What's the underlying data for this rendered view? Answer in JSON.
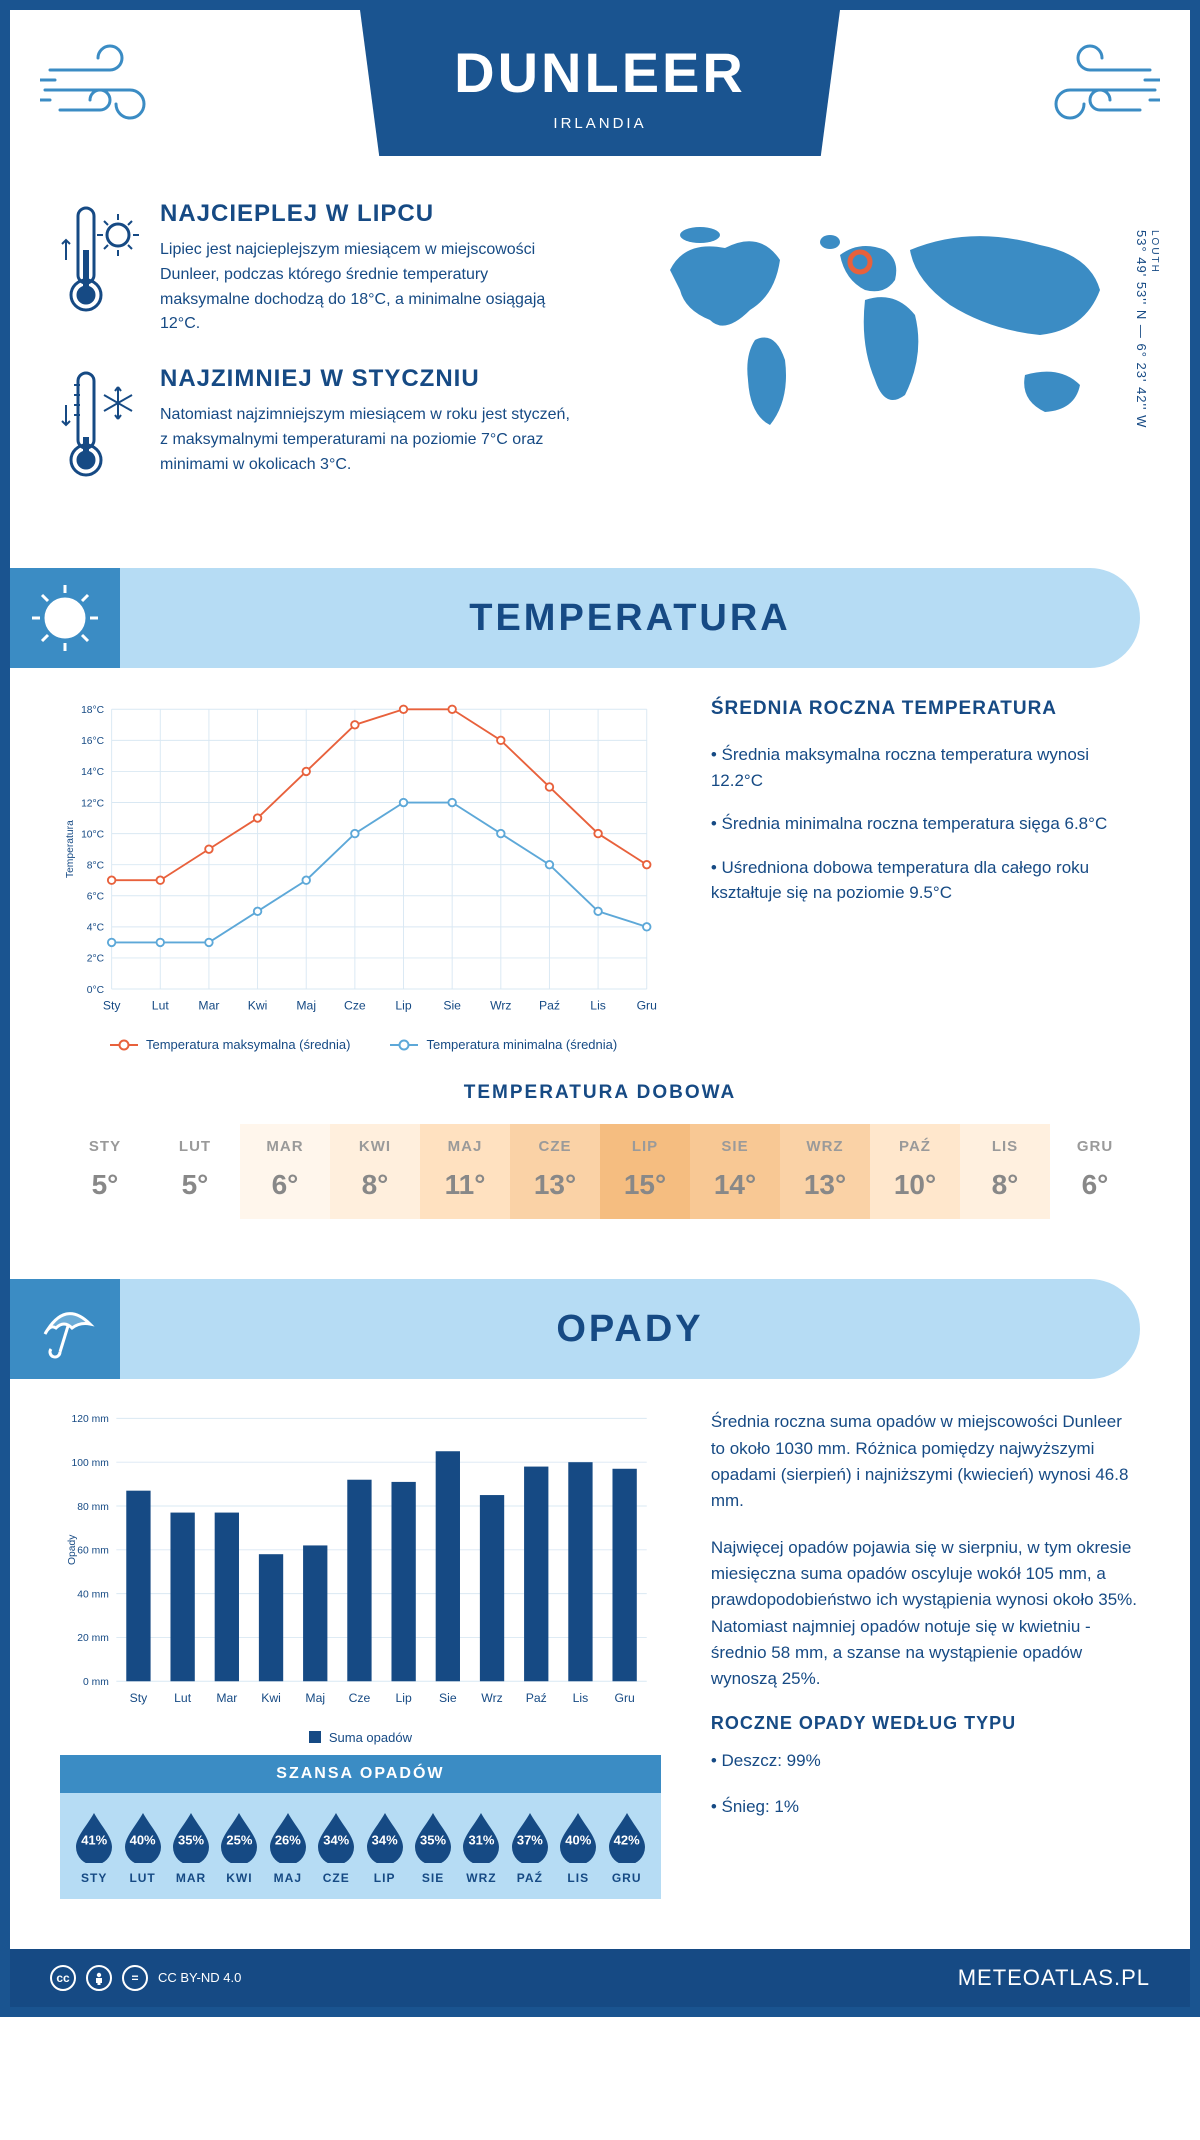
{
  "header": {
    "title": "DUNLEER",
    "subtitle": "IRLANDIA"
  },
  "coords": {
    "region": "LOUTH",
    "lat_lon": "53° 49' 53'' N — 6° 23' 42'' W"
  },
  "intro": {
    "hot": {
      "title": "NAJCIEPLEJ W LIPCU",
      "body": "Lipiec jest najcieplejszym miesiącem w miejscowości Dunleer, podczas którego średnie temperatury maksymalne dochodzą do 18°C, a minimalne osiągają 12°C."
    },
    "cold": {
      "title": "NAJZIMNIEJ W STYCZNIU",
      "body": "Natomiast najzimniejszym miesiącem w roku jest styczeń, z maksymalnymi temperaturami na poziomie 7°C oraz minimami w okolicach 3°C."
    }
  },
  "colors": {
    "primary": "#164a84",
    "accent": "#3b8cc4",
    "light": "#b6dcf4",
    "max_line": "#e8613c",
    "min_line": "#5da8d8",
    "grid": "#d9e8f3",
    "bar": "#164a84"
  },
  "temp_section": {
    "title": "TEMPERATURA",
    "info_title": "ŚREDNIA ROCZNA TEMPERATURA",
    "bullets": [
      "• Średnia maksymalna roczna temperatura wynosi 12.2°C",
      "• Średnia minimalna roczna temperatura sięga 6.8°C",
      "• Uśredniona dobowa temperatura dla całego roku kształtuje się na poziomie 9.5°C"
    ],
    "chart": {
      "type": "line",
      "months": [
        "Sty",
        "Lut",
        "Mar",
        "Kwi",
        "Maj",
        "Cze",
        "Lip",
        "Sie",
        "Wrz",
        "Paź",
        "Lis",
        "Gru"
      ],
      "max": [
        7,
        7,
        9,
        11,
        14,
        17,
        18,
        18,
        16,
        13,
        10,
        8
      ],
      "min": [
        3,
        3,
        3,
        5,
        7,
        10,
        12,
        12,
        10,
        8,
        5,
        4
      ],
      "y_min": 0,
      "y_max": 18,
      "y_step": 2,
      "y_label": "Temperatura",
      "y_tick_suffix": "°C",
      "legend_max": "Temperatura maksymalna (średnia)",
      "legend_min": "Temperatura minimalna (średnia)",
      "line_width": 2,
      "marker_radius": 4
    },
    "daily": {
      "title": "TEMPERATURA DOBOWA",
      "months": [
        "STY",
        "LUT",
        "MAR",
        "KWI",
        "MAJ",
        "CZE",
        "LIP",
        "SIE",
        "WRZ",
        "PAŹ",
        "LIS",
        "GRU"
      ],
      "values": [
        "5°",
        "5°",
        "6°",
        "8°",
        "11°",
        "13°",
        "15°",
        "14°",
        "13°",
        "10°",
        "8°",
        "6°"
      ],
      "bg_colors": [
        "#ffffff",
        "#ffffff",
        "#fff6ec",
        "#ffefdd",
        "#ffe1c0",
        "#fad2a6",
        "#f5bd80",
        "#f8c894",
        "#fad2a6",
        "#ffe7cc",
        "#fff0df",
        "#ffffff"
      ]
    }
  },
  "precip_section": {
    "title": "OPADY",
    "para1": "Średnia roczna suma opadów w miejscowości Dunleer to około 1030 mm. Różnica pomiędzy najwyższymi opadami (sierpień) i najniższymi (kwiecień) wynosi 46.8 mm.",
    "para2": "Najwięcej opadów pojawia się w sierpniu, w tym okresie miesięczna suma opadów oscyluje wokół 105 mm, a prawdopodobieństwo ich wystąpienia wynosi około 35%. Natomiast najmniej opadów notuje się w kwietniu - średnio 58 mm, a szanse na wystąpienie opadów wynoszą 25%.",
    "chart": {
      "type": "bar",
      "months": [
        "Sty",
        "Lut",
        "Mar",
        "Kwi",
        "Maj",
        "Cze",
        "Lip",
        "Sie",
        "Wrz",
        "Paź",
        "Lis",
        "Gru"
      ],
      "values": [
        87,
        77,
        77,
        58,
        62,
        92,
        91,
        105,
        85,
        98,
        100,
        97
      ],
      "y_min": 0,
      "y_max": 120,
      "y_step": 20,
      "y_label": "Opady",
      "y_tick_suffix": " mm",
      "legend": "Suma opadów",
      "bar_width": 0.55
    },
    "chance": {
      "title": "SZANSA OPADÓW",
      "months": [
        "STY",
        "LUT",
        "MAR",
        "KWI",
        "MAJ",
        "CZE",
        "LIP",
        "SIE",
        "WRZ",
        "PAŹ",
        "LIS",
        "GRU"
      ],
      "values": [
        "41%",
        "40%",
        "35%",
        "25%",
        "26%",
        "34%",
        "34%",
        "35%",
        "31%",
        "37%",
        "40%",
        "42%"
      ]
    },
    "by_type": {
      "title": "ROCZNE OPADY WEDŁUG TYPU",
      "items": [
        "• Deszcz: 99%",
        "• Śnieg: 1%"
      ]
    }
  },
  "footer": {
    "license": "CC BY-ND 4.0",
    "brand": "METEOATLAS.PL"
  }
}
